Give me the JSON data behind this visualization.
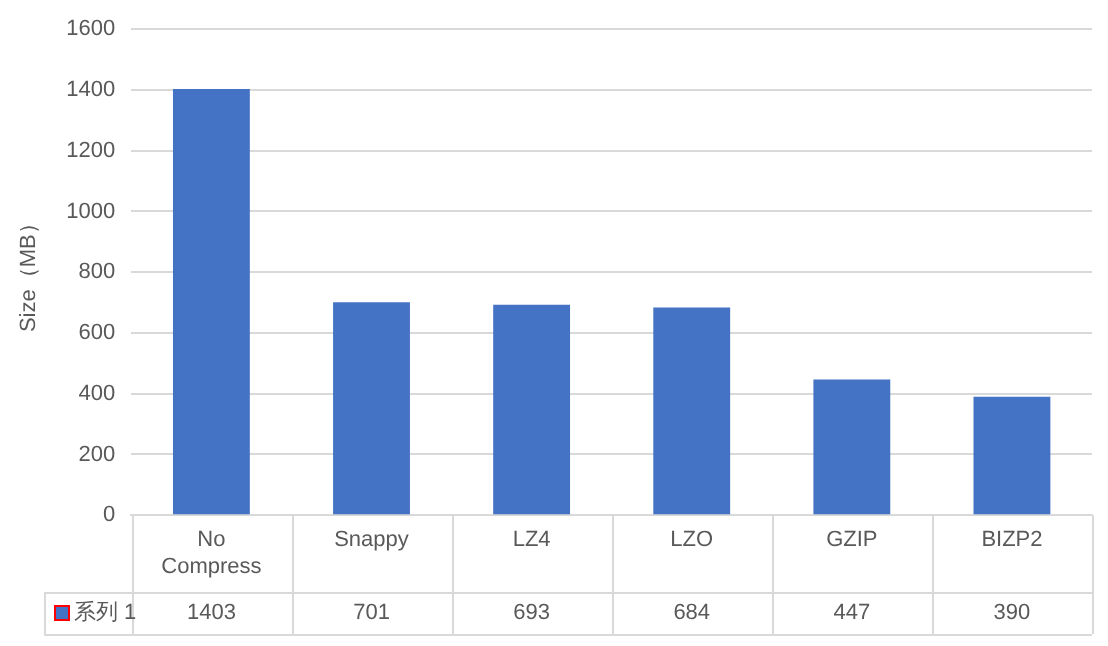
{
  "chart_data": {
    "type": "bar",
    "ylabel": "Size（MB）",
    "categories": [
      "No Compress",
      "Snappy",
      "LZ4",
      "LZO",
      "GZIP",
      "BIZP2"
    ],
    "series": [
      {
        "name": "系列 1",
        "color": "#4472c4",
        "values": [
          1403,
          701,
          693,
          684,
          447,
          390
        ]
      }
    ],
    "ylim": [
      0,
      1600
    ],
    "yticks": [
      0,
      200,
      400,
      600,
      800,
      1000,
      1200,
      1400,
      1600
    ],
    "grid": "y",
    "legend": "bottom",
    "data_labels": true
  }
}
